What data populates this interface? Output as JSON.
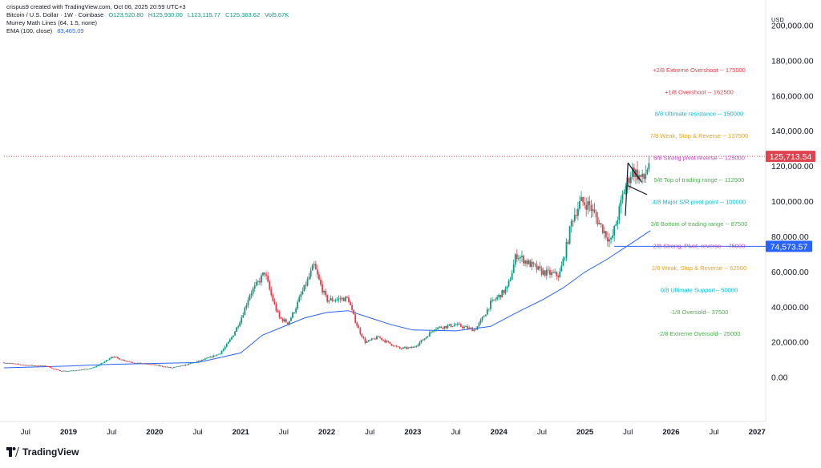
{
  "header": {
    "created": "crispus9 created with TradingView.com, Oct 06, 2025 20:59 UTC+3",
    "symbol": "Bitcoin / U.S. Dollar · 1W · Coinbase",
    "open": "O123,520.80",
    "high": "H125,930.00",
    "low": "L123,115.77",
    "close": "C125,363.62",
    "volume": "Vol5.67K",
    "indicator1": "Murrey Math Lines (64, 1.5, none)",
    "indicator2_name": "EMA (100, close)",
    "indicator2_value": "83,465.09",
    "currency": "USD"
  },
  "branding": {
    "name": "TradingView"
  },
  "colors": {
    "up": "#089981",
    "down": "#f23645",
    "ema": "#2962ff",
    "price_line": "#e0434e",
    "support_line": "#2962ff"
  },
  "chart_data": {
    "type": "candlestick",
    "title": "Bitcoin / U.S. Dollar · 1W · Coinbase",
    "ylim": [
      -25000,
      210000
    ],
    "y_ticks": [
      0,
      20000,
      40000,
      60000,
      80000,
      100000,
      120000,
      140000,
      160000,
      180000,
      200000
    ],
    "y_tick_labels": [
      "0.00",
      "20,000.00",
      "40,000.00",
      "60,000.00",
      "80,000.00",
      "100,000.00",
      "120,000.00",
      "140,000.00",
      "160,000.00",
      "180,000.00",
      "200,000.00"
    ],
    "x_range": [
      2018.25,
      2027.1
    ],
    "x_ticks": [
      {
        "t": 2018.5,
        "label": "Jul",
        "bold": false
      },
      {
        "t": 2019.0,
        "label": "2019",
        "bold": true
      },
      {
        "t": 2019.5,
        "label": "Jul",
        "bold": false
      },
      {
        "t": 2020.0,
        "label": "2020",
        "bold": true
      },
      {
        "t": 2020.5,
        "label": "Jul",
        "bold": false
      },
      {
        "t": 2021.0,
        "label": "2021",
        "bold": true
      },
      {
        "t": 2021.5,
        "label": "Jul",
        "bold": false
      },
      {
        "t": 2022.0,
        "label": "2022",
        "bold": true
      },
      {
        "t": 2022.5,
        "label": "Jul",
        "bold": false
      },
      {
        "t": 2023.0,
        "label": "2023",
        "bold": true
      },
      {
        "t": 2023.5,
        "label": "Jul",
        "bold": false
      },
      {
        "t": 2024.0,
        "label": "2024",
        "bold": true
      },
      {
        "t": 2024.5,
        "label": "Jul",
        "bold": false
      },
      {
        "t": 2025.0,
        "label": "2025",
        "bold": true
      },
      {
        "t": 2025.5,
        "label": "Jul",
        "bold": false
      },
      {
        "t": 2026.0,
        "label": "2026",
        "bold": true
      },
      {
        "t": 2026.5,
        "label": "Jul",
        "bold": false
      },
      {
        "t": 2027.0,
        "label": "2027",
        "bold": true
      }
    ],
    "price_path": [
      [
        2018.25,
        8500
      ],
      [
        2018.5,
        7000
      ],
      [
        2018.75,
        6500
      ],
      [
        2018.9,
        3800
      ],
      [
        2019.0,
        3700
      ],
      [
        2019.25,
        5000
      ],
      [
        2019.5,
        12000
      ],
      [
        2019.75,
        8500
      ],
      [
        2020.0,
        7200
      ],
      [
        2020.2,
        5500
      ],
      [
        2020.5,
        9200
      ],
      [
        2020.75,
        13500
      ],
      [
        2020.95,
        28000
      ],
      [
        2021.1,
        47000
      ],
      [
        2021.28,
        60000
      ],
      [
        2021.45,
        34000
      ],
      [
        2021.55,
        31000
      ],
      [
        2021.7,
        47000
      ],
      [
        2021.85,
        64000
      ],
      [
        2022.0,
        44000
      ],
      [
        2022.25,
        45000
      ],
      [
        2022.45,
        20000
      ],
      [
        2022.6,
        23000
      ],
      [
        2022.85,
        16500
      ],
      [
        2023.0,
        17000
      ],
      [
        2023.25,
        28000
      ],
      [
        2023.5,
        30000
      ],
      [
        2023.72,
        27000
      ],
      [
        2023.9,
        42000
      ],
      [
        2024.1,
        51000
      ],
      [
        2024.2,
        70000
      ],
      [
        2024.5,
        60000
      ],
      [
        2024.7,
        58000
      ],
      [
        2024.85,
        90000
      ],
      [
        2024.95,
        100000
      ],
      [
        2025.05,
        98000
      ],
      [
        2025.2,
        85000
      ],
      [
        2025.3,
        77000
      ],
      [
        2025.45,
        106000
      ],
      [
        2025.55,
        118000
      ],
      [
        2025.68,
        112000
      ],
      [
        2025.76,
        125363
      ]
    ],
    "ema_100": [
      [
        2018.25,
        5500
      ],
      [
        2019.0,
        6500
      ],
      [
        2019.5,
        7500
      ],
      [
        2020.0,
        8000
      ],
      [
        2020.5,
        8500
      ],
      [
        2021.0,
        14000
      ],
      [
        2021.25,
        24000
      ],
      [
        2021.5,
        29000
      ],
      [
        2021.75,
        34000
      ],
      [
        2022.0,
        37000
      ],
      [
        2022.25,
        38000
      ],
      [
        2022.5,
        34000
      ],
      [
        2022.75,
        30000
      ],
      [
        2023.0,
        27000
      ],
      [
        2023.5,
        26500
      ],
      [
        2023.9,
        29000
      ],
      [
        2024.25,
        38000
      ],
      [
        2024.5,
        44000
      ],
      [
        2024.75,
        51000
      ],
      [
        2025.0,
        60000
      ],
      [
        2025.25,
        67000
      ],
      [
        2025.5,
        75000
      ],
      [
        2025.76,
        83465
      ]
    ],
    "current_price": {
      "value": 125713.54,
      "label": "125,713.54"
    },
    "support_level": {
      "value": 74573.57,
      "label": "74,573.57",
      "from": 2025.34
    },
    "murrey_levels": [
      {
        "label": "+2/8 Extreme Overshoot --  175000",
        "value": 175000,
        "color": "#f23645"
      },
      {
        "label": "+1/8 Overshoot --  162500",
        "value": 162500,
        "color": "#f23645"
      },
      {
        "label": "8/8 Ultimate resistance --  150000",
        "value": 150000,
        "color": "#00bcd4"
      },
      {
        "label": "7/8 Weak, Stop & Reverse --  137500",
        "value": 137500,
        "color": "#e8a317"
      },
      {
        "label": "6/8 Strong pivot reverse --  125000",
        "value": 125000,
        "color": "#c040c0"
      },
      {
        "label": "5/8 Top of trading range --  112500",
        "value": 112500,
        "color": "#4caf50"
      },
      {
        "label": "4/8 Major S/R pivot point --  100000",
        "value": 100000,
        "color": "#00bcd4"
      },
      {
        "label": "3/8 Bottom of trading range --  87500",
        "value": 87500,
        "color": "#4caf50"
      },
      {
        "label": "2/8 Strong, Pivot, reverse --  75000",
        "value": 75000,
        "color": "#c040c0"
      },
      {
        "label": "1/8 Weak, Stop & Reverse --  62500",
        "value": 62500,
        "color": "#e8a317"
      },
      {
        "label": "0/8 Ultimate Support--  50000",
        "value": 50000,
        "color": "#00bcd4"
      },
      {
        "label": "-1/8 Oversold--  37500",
        "value": 37500,
        "color": "#4caf50"
      },
      {
        "label": "-2/8 Extreme Oversold--  25000",
        "value": 25000,
        "color": "#4caf50"
      }
    ],
    "flag_pattern": {
      "upper": [
        [
          2025.5,
          122000
        ],
        [
          2025.66,
          111000
        ]
      ],
      "lower": [
        [
          2025.5,
          109000
        ],
        [
          2025.72,
          104000
        ]
      ],
      "pole": [
        [
          2025.47,
          92000
        ],
        [
          2025.5,
          122000
        ]
      ]
    }
  }
}
